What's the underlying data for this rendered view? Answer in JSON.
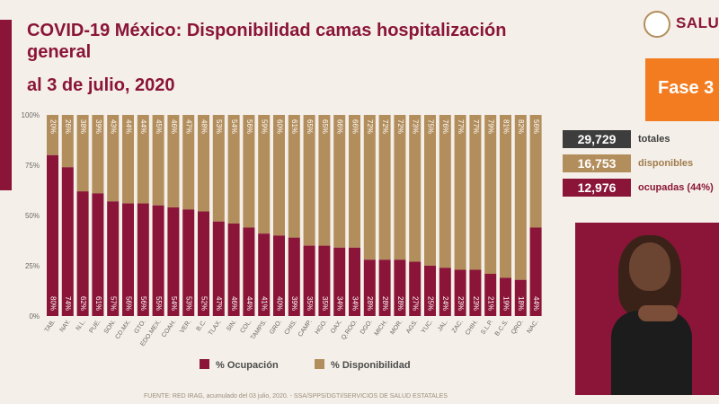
{
  "header": {
    "title": "COVID-19 México: Disponibilidad camas hospitalización general",
    "subtitle": "al 3 de julio, 2020",
    "logo_text": "SALU",
    "phase_label": "Fase 3"
  },
  "stats": [
    {
      "value": "29,729",
      "label": "totales",
      "color": "#3d3d3d",
      "label_color": "#3d3d3d"
    },
    {
      "value": "16,753",
      "label": "disponibles",
      "color": "#b38e5d",
      "label_color": "#a17c4d"
    },
    {
      "value": "12,976",
      "label": "ocupadas (44%)",
      "color": "#8a1538",
      "label_color": "#8a1538"
    }
  ],
  "chart_data": {
    "type": "bar",
    "stacked": true,
    "categories": [
      "TAB.",
      "NAY.",
      "N.L.",
      "PUE.",
      "SON.",
      "CD.MX.",
      "GTO.",
      "EDO.MEX.",
      "COAH.",
      "VER.",
      "B.C.",
      "TLAX.",
      "SIN.",
      "COL.",
      "TAMPS.",
      "GRO.",
      "CHIS.",
      "CAMP.",
      "HGO.",
      "OAX.",
      "Q.ROO.",
      "DGO.",
      "MICH.",
      "MOR.",
      "AGS.",
      "YUC.",
      "JAL.",
      "ZAC.",
      "CHIH.",
      "S.L.P.",
      "B.C.S.",
      "QRO.",
      "NAC."
    ],
    "series": [
      {
        "name": "% Ocupación",
        "color": "#8a1538",
        "values": [
          80,
          74,
          62,
          61,
          57,
          56,
          56,
          55,
          54,
          53,
          52,
          47,
          46,
          44,
          41,
          40,
          39,
          35,
          35,
          34,
          34,
          28,
          28,
          28,
          27,
          25,
          24,
          23,
          23,
          21,
          19,
          18,
          44
        ]
      },
      {
        "name": "% Disponibilidad",
        "color": "#b38e5d",
        "values": [
          20,
          26,
          38,
          39,
          43,
          44,
          44,
          45,
          46,
          47,
          48,
          53,
          54,
          56,
          59,
          60,
          61,
          65,
          65,
          66,
          66,
          72,
          72,
          72,
          73,
          75,
          76,
          77,
          77,
          79,
          81,
          82,
          56
        ]
      }
    ],
    "y_ticks": [
      "0%",
      "25%",
      "50%",
      "75%",
      "100%"
    ],
    "ylim": [
      0,
      100
    ],
    "legend_position": "bottom"
  },
  "footer": "FUENTE: RED IRAG, acumulado del 03 julio, 2020. - SSA/SPPS/DGTI/SERVICIOS DE SALUD ESTATALES"
}
